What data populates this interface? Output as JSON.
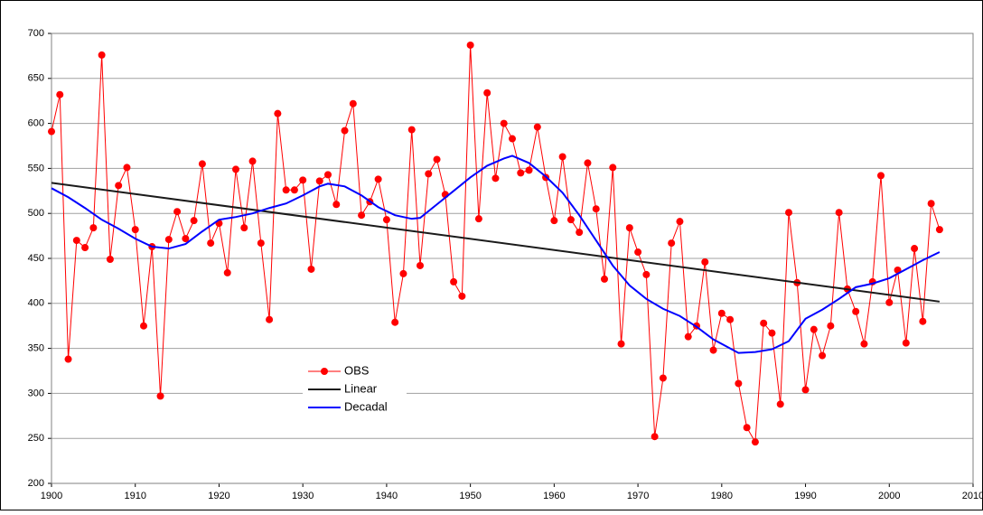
{
  "chart_data": {
    "type": "line",
    "xlim": [
      1900,
      2010
    ],
    "xticks": [
      1900,
      1910,
      1920,
      1930,
      1940,
      1950,
      1960,
      1970,
      1980,
      1990,
      2000,
      2010
    ],
    "ylim": [
      200,
      700
    ],
    "yticks": [
      200,
      250,
      300,
      350,
      400,
      450,
      500,
      550,
      600,
      650,
      700
    ],
    "grid": true,
    "legend": "center-left",
    "series": [
      {
        "name": "OBS",
        "color": "#ff0000",
        "markers": true,
        "x": [
          1900,
          1901,
          1902,
          1903,
          1904,
          1905,
          1906,
          1907,
          1908,
          1909,
          1910,
          1911,
          1912,
          1913,
          1914,
          1915,
          1916,
          1917,
          1918,
          1919,
          1920,
          1921,
          1922,
          1923,
          1924,
          1925,
          1926,
          1927,
          1928,
          1929,
          1930,
          1931,
          1932,
          1933,
          1934,
          1935,
          1936,
          1937,
          1938,
          1939,
          1940,
          1941,
          1942,
          1943,
          1944,
          1945,
          1946,
          1947,
          1948,
          1949,
          1950,
          1951,
          1952,
          1953,
          1954,
          1955,
          1956,
          1957,
          1958,
          1959,
          1960,
          1961,
          1962,
          1963,
          1964,
          1965,
          1966,
          1967,
          1968,
          1969,
          1970,
          1971,
          1972,
          1973,
          1974,
          1975,
          1976,
          1977,
          1978,
          1979,
          1980,
          1981,
          1982,
          1983,
          1984,
          1985,
          1986,
          1987,
          1988,
          1989,
          1990,
          1991,
          1992,
          1993,
          1994,
          1995,
          1996,
          1997,
          1998,
          1999,
          2000,
          2001,
          2002,
          2003,
          2004,
          2005,
          2006
        ],
        "values": [
          591,
          632,
          338,
          470,
          462,
          484,
          676,
          449,
          531,
          551,
          482,
          375,
          463,
          297,
          471,
          502,
          472,
          492,
          555,
          467,
          489,
          434,
          549,
          484,
          558,
          467,
          382,
          611,
          526,
          526,
          537,
          438,
          536,
          543,
          510,
          592,
          622,
          498,
          513,
          538,
          493,
          379,
          433,
          593,
          442,
          544,
          560,
          521,
          424,
          408,
          687,
          494,
          634,
          539,
          600,
          583,
          545,
          548,
          596,
          540,
          492,
          563,
          493,
          479,
          556,
          505,
          427,
          551,
          355,
          484,
          457,
          432,
          252,
          317,
          467,
          491,
          363,
          375,
          446,
          348,
          389,
          382,
          311,
          262,
          246,
          378,
          367,
          288,
          501,
          423,
          304,
          371,
          342,
          375,
          501,
          416,
          391,
          355,
          424,
          542,
          401,
          437,
          356,
          461,
          380,
          511,
          482
        ]
      },
      {
        "name": "Linear",
        "color": "#1a1a1a",
        "markers": false,
        "x": [
          1900,
          2006
        ],
        "values": [
          534,
          402
        ]
      },
      {
        "name": "Decadal",
        "color": "#0000ff",
        "markers": false,
        "x": [
          1900,
          1902,
          1904,
          1906,
          1908,
          1910,
          1912,
          1914,
          1916,
          1918,
          1920,
          1922,
          1924,
          1926,
          1928,
          1930,
          1932,
          1933,
          1935,
          1937,
          1939,
          1941,
          1943,
          1944,
          1946,
          1948,
          1950,
          1952,
          1954,
          1955,
          1957,
          1959,
          1961,
          1963,
          1965,
          1967,
          1969,
          1971,
          1973,
          1975,
          1977,
          1979,
          1981,
          1982,
          1984,
          1986,
          1988,
          1990,
          1992,
          1994,
          1996,
          1998,
          2000,
          2002,
          2004,
          2006
        ],
        "values": [
          528,
          518,
          506,
          493,
          483,
          472,
          463,
          461,
          466,
          480,
          493,
          496,
          500,
          506,
          511,
          520,
          530,
          533,
          530,
          520,
          507,
          498,
          494,
          495,
          510,
          525,
          540,
          553,
          561,
          564,
          556,
          541,
          523,
          498,
          470,
          442,
          420,
          405,
          394,
          386,
          374,
          360,
          350,
          345,
          346,
          349,
          358,
          383,
          393,
          405,
          418,
          422,
          428,
          438,
          448,
          457
        ]
      }
    ]
  }
}
